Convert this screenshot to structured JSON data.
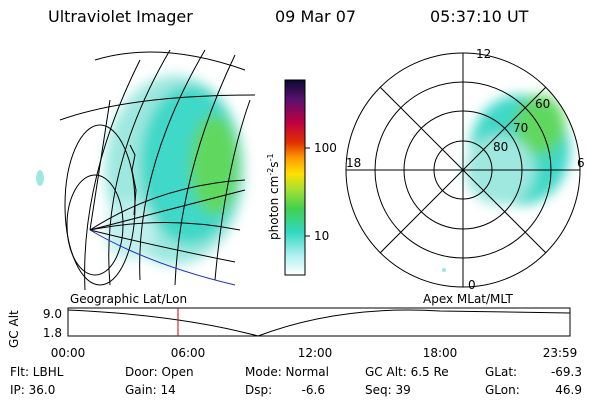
{
  "header": {
    "title": "Ultraviolet Imager",
    "date": "09 Mar 07",
    "time": "05:37:10 UT"
  },
  "colorbar": {
    "label": "photon cm",
    "exp1": "-2",
    "unit2": "s",
    "exp2": "-1",
    "ticks": [
      "100",
      "10"
    ]
  },
  "polar": {
    "mlt": [
      "12",
      "18",
      "6",
      "0"
    ],
    "mlat": [
      "60",
      "70",
      "80"
    ]
  },
  "projections": {
    "left": "Geographic Lat/Lon",
    "right": "Apex MLat/MLT"
  },
  "timeline": {
    "axis_label": "GC Alt",
    "top": "9.0",
    "bottom": "1.8",
    "ticks": [
      "00:00",
      "06:00",
      "12:00",
      "18:00",
      "23:59"
    ]
  },
  "footer": [
    [
      "Flt: LBHL",
      "IP: 36.0"
    ],
    [
      "Door: Open",
      "Gain: 14"
    ],
    [
      "Mode: Normal",
      "Dsp:",
      "-6.6"
    ],
    [
      "GC Alt: 6.5 Re",
      "Seq: 39"
    ],
    [
      "GLat:",
      "-69.3",
      "GLon:",
      "46.9"
    ]
  ]
}
